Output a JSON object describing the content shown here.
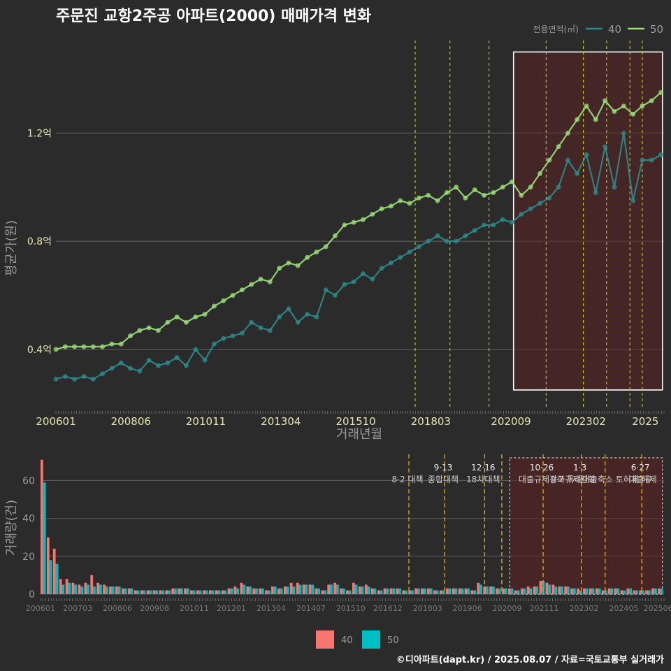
{
  "chart_data": [
    {
      "type": "line",
      "title": "주문진 교항2주공 아파트(2000) 매매가격 변화",
      "xlabel": "거래년월",
      "ylabel": "평균가(원)",
      "legend_title": "전용면적(㎡)",
      "legend_placement": "top-right",
      "grid": true,
      "y_ticks": [
        {
          "value": 0.4,
          "label": "0.4억"
        },
        {
          "value": 0.8,
          "label": "0.8억"
        },
        {
          "value": 1.2,
          "label": "1.2억"
        }
      ],
      "ylim": [
        0.18,
        1.55
      ],
      "x_ticks": [
        "200601",
        "200806",
        "201011",
        "201304",
        "201510",
        "201803",
        "202009",
        "202302",
        "2025"
      ],
      "x_tick_positions": [
        2006.0,
        2008.417,
        2010.833,
        2013.25,
        2015.667,
        2018.083,
        2020.667,
        2023.083,
        2025.0
      ],
      "xlim": [
        2006.0,
        2025.6
      ],
      "highlight_range": [
        2020.75,
        2025.55
      ],
      "policy_lines": [
        2017.58,
        2018.7,
        2019.96,
        2021.8,
        2023.0,
        2023.75,
        2024.5,
        2024.9
      ],
      "series": [
        {
          "name": "40",
          "color": "#2e8b8b",
          "x": [
            2006.0,
            2006.3,
            2006.6,
            2006.9,
            2007.2,
            2007.5,
            2007.8,
            2008.1,
            2008.4,
            2008.7,
            2009.0,
            2009.3,
            2009.6,
            2009.9,
            2010.2,
            2010.5,
            2010.8,
            2011.1,
            2011.4,
            2011.7,
            2012.0,
            2012.3,
            2012.6,
            2012.9,
            2013.2,
            2013.5,
            2013.8,
            2014.1,
            2014.4,
            2014.7,
            2015.0,
            2015.3,
            2015.6,
            2015.9,
            2016.2,
            2016.5,
            2016.8,
            2017.1,
            2017.4,
            2017.7,
            2018.0,
            2018.3,
            2018.6,
            2018.9,
            2019.2,
            2019.5,
            2019.8,
            2020.1,
            2020.4,
            2020.7,
            2021.0,
            2021.3,
            2021.6,
            2021.9,
            2022.2,
            2022.5,
            2022.8,
            2023.1,
            2023.4,
            2023.7,
            2024.0,
            2024.3,
            2024.6,
            2024.9,
            2025.2,
            2025.5
          ],
          "values": [
            0.29,
            0.3,
            0.29,
            0.3,
            0.29,
            0.31,
            0.33,
            0.35,
            0.33,
            0.32,
            0.36,
            0.34,
            0.35,
            0.37,
            0.34,
            0.4,
            0.36,
            0.42,
            0.44,
            0.45,
            0.46,
            0.5,
            0.48,
            0.47,
            0.52,
            0.55,
            0.5,
            0.53,
            0.52,
            0.62,
            0.6,
            0.64,
            0.65,
            0.68,
            0.66,
            0.7,
            0.72,
            0.74,
            0.76,
            0.78,
            0.8,
            0.82,
            0.8,
            0.8,
            0.82,
            0.84,
            0.86,
            0.86,
            0.88,
            0.87,
            0.9,
            0.92,
            0.94,
            0.96,
            1.0,
            1.1,
            1.05,
            1.12,
            0.98,
            1.15,
            1.0,
            1.2,
            0.95,
            1.1,
            1.1,
            1.12
          ]
        },
        {
          "name": "50",
          "color": "#9be07a",
          "x": [
            2006.0,
            2006.3,
            2006.6,
            2006.9,
            2007.2,
            2007.5,
            2007.8,
            2008.1,
            2008.4,
            2008.7,
            2009.0,
            2009.3,
            2009.6,
            2009.9,
            2010.2,
            2010.5,
            2010.8,
            2011.1,
            2011.4,
            2011.7,
            2012.0,
            2012.3,
            2012.6,
            2012.9,
            2013.2,
            2013.5,
            2013.8,
            2014.1,
            2014.4,
            2014.7,
            2015.0,
            2015.3,
            2015.6,
            2015.9,
            2016.2,
            2016.5,
            2016.8,
            2017.1,
            2017.4,
            2017.7,
            2018.0,
            2018.3,
            2018.6,
            2018.9,
            2019.2,
            2019.5,
            2019.8,
            2020.1,
            2020.4,
            2020.7,
            2021.0,
            2021.3,
            2021.6,
            2021.9,
            2022.2,
            2022.5,
            2022.8,
            2023.1,
            2023.4,
            2023.7,
            2024.0,
            2024.3,
            2024.6,
            2024.9,
            2025.2,
            2025.5
          ],
          "values": [
            0.4,
            0.41,
            0.41,
            0.41,
            0.41,
            0.41,
            0.42,
            0.42,
            0.45,
            0.47,
            0.48,
            0.47,
            0.5,
            0.52,
            0.5,
            0.52,
            0.53,
            0.56,
            0.58,
            0.6,
            0.62,
            0.64,
            0.66,
            0.65,
            0.7,
            0.72,
            0.71,
            0.74,
            0.76,
            0.78,
            0.82,
            0.86,
            0.87,
            0.88,
            0.9,
            0.92,
            0.93,
            0.95,
            0.94,
            0.96,
            0.97,
            0.95,
            0.98,
            1.0,
            0.96,
            0.99,
            0.97,
            0.98,
            1.0,
            1.02,
            0.97,
            1.0,
            1.05,
            1.1,
            1.15,
            1.2,
            1.25,
            1.3,
            1.25,
            1.32,
            1.28,
            1.3,
            1.27,
            1.3,
            1.32,
            1.35
          ]
        }
      ]
    },
    {
      "type": "bar",
      "xlabel": "",
      "ylabel": "거래량(건)",
      "y_ticks": [
        0,
        20,
        40,
        60
      ],
      "ylim": [
        0,
        72
      ],
      "x_ticks": [
        "200601",
        "200703",
        "200806",
        "200908",
        "201011",
        "201201",
        "201304",
        "201407",
        "201510",
        "201612",
        "201803",
        "201906",
        "202009",
        "202111",
        "202302",
        "202405",
        "202506"
      ],
      "x_tick_positions": [
        2006.0,
        2007.167,
        2008.417,
        2009.583,
        2010.833,
        2012.0,
        2013.25,
        2014.5,
        2015.75,
        2016.917,
        2018.167,
        2019.417,
        2020.667,
        2021.833,
        2023.083,
        2024.333,
        2025.417
      ],
      "xlim": [
        2006.0,
        2025.6
      ],
      "highlight_range": [
        2020.75,
        2025.55
      ],
      "policy_events": [
        {
          "x": 2017.58,
          "date": "",
          "label": "8·2 대책"
        },
        {
          "x": 2018.7,
          "date": "9·13",
          "label": "종합대책"
        },
        {
          "x": 2019.96,
          "date": "12·16",
          "label": "18차대책"
        },
        {
          "x": 2020.5,
          "date": "",
          "label": ""
        },
        {
          "x": 2021.8,
          "date": "10·26",
          "label": "대출규제강화"
        },
        {
          "x": 2023.0,
          "date": "1·3",
          "label": "규제완화"
        },
        {
          "x": 2023.75,
          "date": "",
          "label": "9·7 특례대출축소 토허제 해제"
        },
        {
          "x": 2024.9,
          "date": "6·27",
          "label": "대출규"
        }
      ],
      "series": [
        {
          "name": "40",
          "color": "#f8766d",
          "values": [
            71,
            30,
            24,
            8,
            8,
            6,
            5,
            6,
            10,
            6,
            5,
            4,
            4,
            3,
            3,
            2,
            2,
            2,
            2,
            2,
            2,
            3,
            3,
            3,
            2,
            2,
            2,
            2,
            2,
            2,
            3,
            4,
            6,
            4,
            3,
            3,
            2,
            4,
            3,
            4,
            6,
            6,
            5,
            5,
            3,
            2,
            5,
            6,
            3,
            2,
            6,
            4,
            5,
            3,
            2,
            3,
            3,
            3,
            2,
            2,
            3,
            3,
            3,
            2,
            2,
            3,
            3,
            3,
            3,
            2,
            6,
            4,
            4,
            3,
            3,
            3,
            2,
            3,
            4,
            4,
            7,
            6,
            5,
            4,
            4,
            3,
            3,
            3,
            3,
            3,
            2,
            3,
            3,
            2,
            3,
            2,
            2,
            2,
            3,
            3
          ]
        },
        {
          "name": "50",
          "color": "#00bfc4",
          "values": [
            59,
            18,
            16,
            5,
            6,
            5,
            4,
            5,
            4,
            5,
            4,
            4,
            4,
            3,
            3,
            2,
            2,
            2,
            2,
            2,
            2,
            3,
            3,
            3,
            2,
            2,
            2,
            2,
            2,
            2,
            3,
            3,
            5,
            4,
            3,
            3,
            2,
            4,
            3,
            4,
            4,
            5,
            5,
            5,
            3,
            2,
            5,
            5,
            3,
            2,
            5,
            4,
            4,
            3,
            2,
            3,
            3,
            3,
            2,
            2,
            3,
            3,
            3,
            2,
            2,
            3,
            3,
            3,
            3,
            2,
            5,
            4,
            4,
            3,
            3,
            3,
            2,
            3,
            3,
            4,
            7,
            5,
            4,
            4,
            4,
            3,
            2,
            3,
            3,
            3,
            2,
            3,
            3,
            2,
            3,
            2,
            2,
            2,
            3,
            3
          ]
        }
      ]
    }
  ],
  "legend_bottom": [
    {
      "name": "40",
      "color": "#f8766d"
    },
    {
      "name": "50",
      "color": "#00bfc4"
    }
  ],
  "caption": "©디아파트(dapt.kr) / 2025.08.07 / 자료=국토교통부 실거래가"
}
